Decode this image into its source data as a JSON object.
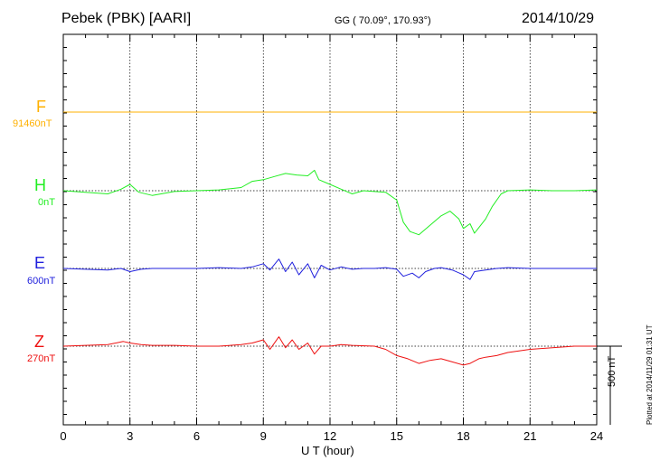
{
  "header": {
    "title": "Pebek (PBK)  [AARI]",
    "coords": "GG ( 70.09°, 170.93°)",
    "date": "2014/10/29"
  },
  "plotted_note": "Plotted at 2014/11/29 01:31  UT",
  "scale_label": "500 nT",
  "chart_data": {
    "type": "line",
    "title": "",
    "xlabel": "U T (hour)",
    "ylabel": "",
    "xlim": [
      0,
      24
    ],
    "x_ticks": [
      "0",
      "3",
      "6",
      "9",
      "12",
      "15",
      "18",
      "21",
      "24"
    ],
    "grid": true,
    "scale_bar_nT": 500,
    "series": [
      {
        "name": "F",
        "baseline": "91460nT",
        "color": "#ffb000",
        "points": [
          [
            0,
            0
          ],
          [
            24,
            0
          ]
        ]
      },
      {
        "name": "H",
        "baseline": "0nT",
        "color": "#22ee22",
        "points": [
          [
            0,
            0
          ],
          [
            1,
            -10
          ],
          [
            2,
            -20
          ],
          [
            2.6,
            10
          ],
          [
            3,
            40
          ],
          [
            3.4,
            -10
          ],
          [
            4,
            -30
          ],
          [
            5,
            -5
          ],
          [
            6,
            0
          ],
          [
            7,
            5
          ],
          [
            8,
            20
          ],
          [
            8.5,
            60
          ],
          [
            9,
            70
          ],
          [
            9.5,
            90
          ],
          [
            10,
            110
          ],
          [
            10.5,
            100
          ],
          [
            11,
            95
          ],
          [
            11.3,
            130
          ],
          [
            11.5,
            70
          ],
          [
            12,
            40
          ],
          [
            12.5,
            10
          ],
          [
            13,
            -20
          ],
          [
            13.5,
            0
          ],
          [
            14,
            -5
          ],
          [
            14.5,
            -10
          ],
          [
            15,
            -60
          ],
          [
            15.3,
            -200
          ],
          [
            15.6,
            -260
          ],
          [
            16,
            -280
          ],
          [
            16.5,
            -220
          ],
          [
            17,
            -160
          ],
          [
            17.4,
            -130
          ],
          [
            17.8,
            -180
          ],
          [
            18,
            -240
          ],
          [
            18.3,
            -210
          ],
          [
            18.5,
            -270
          ],
          [
            19,
            -180
          ],
          [
            19.3,
            -100
          ],
          [
            19.7,
            -20
          ],
          [
            20,
            0
          ],
          [
            21,
            5
          ],
          [
            22,
            0
          ],
          [
            23,
            0
          ],
          [
            24,
            5
          ]
        ]
      },
      {
        "name": "E",
        "baseline": "600nT",
        "color": "#2020dd",
        "points": [
          [
            0,
            0
          ],
          [
            1,
            -5
          ],
          [
            2,
            -10
          ],
          [
            2.6,
            0
          ],
          [
            3,
            -20
          ],
          [
            3.5,
            -5
          ],
          [
            4,
            0
          ],
          [
            5,
            0
          ],
          [
            6,
            0
          ],
          [
            7,
            5
          ],
          [
            8,
            0
          ],
          [
            8.5,
            10
          ],
          [
            9,
            30
          ],
          [
            9.3,
            -10
          ],
          [
            9.7,
            60
          ],
          [
            10,
            -20
          ],
          [
            10.3,
            40
          ],
          [
            10.6,
            -40
          ],
          [
            11,
            30
          ],
          [
            11.3,
            -60
          ],
          [
            11.6,
            20
          ],
          [
            12,
            -10
          ],
          [
            12.5,
            10
          ],
          [
            13,
            -5
          ],
          [
            13.5,
            0
          ],
          [
            14,
            0
          ],
          [
            14.5,
            5
          ],
          [
            15,
            -5
          ],
          [
            15.3,
            -50
          ],
          [
            15.7,
            -30
          ],
          [
            16,
            -60
          ],
          [
            16.3,
            -20
          ],
          [
            16.7,
            0
          ],
          [
            17,
            5
          ],
          [
            17.5,
            -10
          ],
          [
            18,
            -40
          ],
          [
            18.3,
            -70
          ],
          [
            18.5,
            -20
          ],
          [
            19,
            -10
          ],
          [
            19.5,
            0
          ],
          [
            20,
            5
          ],
          [
            21,
            0
          ],
          [
            22,
            0
          ],
          [
            23,
            0
          ],
          [
            24,
            0
          ]
        ]
      },
      {
        "name": "Z",
        "baseline": "270nT",
        "color": "#ee1111",
        "points": [
          [
            0,
            0
          ],
          [
            1,
            5
          ],
          [
            2,
            10
          ],
          [
            2.7,
            30
          ],
          [
            3,
            20
          ],
          [
            3.5,
            10
          ],
          [
            4,
            5
          ],
          [
            5,
            5
          ],
          [
            6,
            0
          ],
          [
            7,
            0
          ],
          [
            8,
            10
          ],
          [
            8.5,
            20
          ],
          [
            9,
            40
          ],
          [
            9.3,
            -20
          ],
          [
            9.7,
            60
          ],
          [
            10,
            -10
          ],
          [
            10.3,
            40
          ],
          [
            10.6,
            -20
          ],
          [
            11,
            20
          ],
          [
            11.3,
            -50
          ],
          [
            11.6,
            0
          ],
          [
            12,
            0
          ],
          [
            12.5,
            10
          ],
          [
            13,
            5
          ],
          [
            14,
            0
          ],
          [
            14.5,
            -20
          ],
          [
            15,
            -60
          ],
          [
            15.5,
            -80
          ],
          [
            16,
            -110
          ],
          [
            16.5,
            -90
          ],
          [
            17,
            -80
          ],
          [
            17.5,
            -100
          ],
          [
            18,
            -120
          ],
          [
            18.3,
            -110
          ],
          [
            18.7,
            -80
          ],
          [
            19,
            -70
          ],
          [
            19.5,
            -60
          ],
          [
            20,
            -40
          ],
          [
            20.5,
            -30
          ],
          [
            21,
            -20
          ],
          [
            22,
            -10
          ],
          [
            23,
            0
          ],
          [
            24,
            0
          ]
        ]
      }
    ]
  }
}
